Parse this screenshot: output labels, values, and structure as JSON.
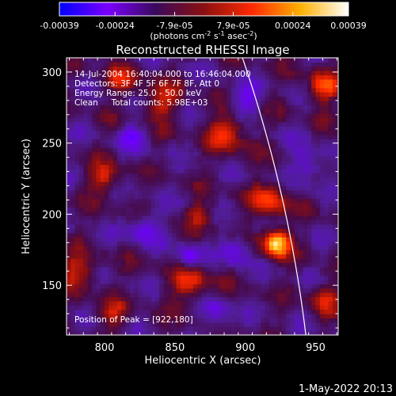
{
  "colorbar": {
    "tick_labels": [
      "-0.00039",
      "-0.00024",
      "-7.9e-05",
      "7.9e-05",
      "0.00024",
      "0.00039"
    ],
    "tick_values": [
      -0.00039,
      -0.00024,
      -7.9e-05,
      7.9e-05,
      0.00024,
      0.00039
    ],
    "range": [
      -0.00039,
      0.00039
    ],
    "unit_main": "(photons cm",
    "unit_exp1": "-2",
    "unit_mid": " s",
    "unit_exp2": "-1",
    "unit_tail": " asec",
    "unit_exp3": "-2",
    "unit_close": ")",
    "colors": [
      "#0000ff",
      "#7a00ff",
      "#3a0a5c",
      "#8a1010",
      "#ff2a00",
      "#ffb000",
      "#ffffff"
    ]
  },
  "chart_data": {
    "type": "heatmap",
    "title": "Reconstructed RHESSI Image",
    "xlabel": "Heliocentric X (arcsec)",
    "ylabel": "Heliocentric Y (arcsec)",
    "xlim": [
      773,
      966
    ],
    "ylim": [
      115,
      310
    ],
    "x_ticks": [
      800,
      850,
      900,
      950
    ],
    "y_ticks": [
      150,
      200,
      250,
      300
    ],
    "x_tick_labels": [
      "800",
      "850",
      "900",
      "950"
    ],
    "y_tick_labels": [
      "150",
      "200",
      "250",
      "300"
    ],
    "peak": {
      "x": 922,
      "y": 180
    },
    "hot_spots": [
      {
        "x": 922,
        "y": 180,
        "sigma": 7,
        "amp": 1.0
      },
      {
        "x": 918,
        "y": 210,
        "sigma": 9,
        "amp": 0.55
      },
      {
        "x": 955,
        "y": 290,
        "sigma": 8,
        "amp": 0.6
      },
      {
        "x": 888,
        "y": 258,
        "sigma": 10,
        "amp": 0.5
      },
      {
        "x": 800,
        "y": 225,
        "sigma": 8,
        "amp": 0.45
      },
      {
        "x": 840,
        "y": 280,
        "sigma": 9,
        "amp": 0.45
      },
      {
        "x": 782,
        "y": 160,
        "sigma": 9,
        "amp": 0.45
      },
      {
        "x": 862,
        "y": 152,
        "sigma": 10,
        "amp": 0.5
      },
      {
        "x": 955,
        "y": 140,
        "sigma": 8,
        "amp": 0.4
      },
      {
        "x": 812,
        "y": 295,
        "sigma": 8,
        "amp": 0.4
      },
      {
        "x": 868,
        "y": 200,
        "sigma": 7,
        "amp": 0.35
      },
      {
        "x": 805,
        "y": 130,
        "sigma": 8,
        "amp": 0.35
      }
    ],
    "cold_spots": [
      {
        "x": 860,
        "y": 170,
        "sigma": 6,
        "amp": 0.55
      },
      {
        "x": 893,
        "y": 175,
        "sigma": 7,
        "amp": 0.5
      },
      {
        "x": 828,
        "y": 190,
        "sigma": 8,
        "amp": 0.45
      },
      {
        "x": 900,
        "y": 280,
        "sigma": 8,
        "amp": 0.45
      },
      {
        "x": 820,
        "y": 255,
        "sigma": 7,
        "amp": 0.35
      },
      {
        "x": 945,
        "y": 235,
        "sigma": 9,
        "amp": 0.4
      },
      {
        "x": 880,
        "y": 130,
        "sigma": 8,
        "amp": 0.4
      }
    ],
    "limb": {
      "center_x": 0,
      "center_y": 0,
      "radius": 950
    }
  },
  "annotations": {
    "time_range": "14-Jul-2004 16:40:04.000 to 16:46:04.000",
    "detectors": "Detectors: 3F 4F 5F 6F 7F 8F, Att 0",
    "energy": "Energy Range: 25.0 - 50.0 keV",
    "clean": "Clean     Total counts: 5.98E+03",
    "peak_text": "Position of Peak = [922,180]"
  },
  "footer": {
    "timestamp": "1-May-2022 20:13"
  }
}
